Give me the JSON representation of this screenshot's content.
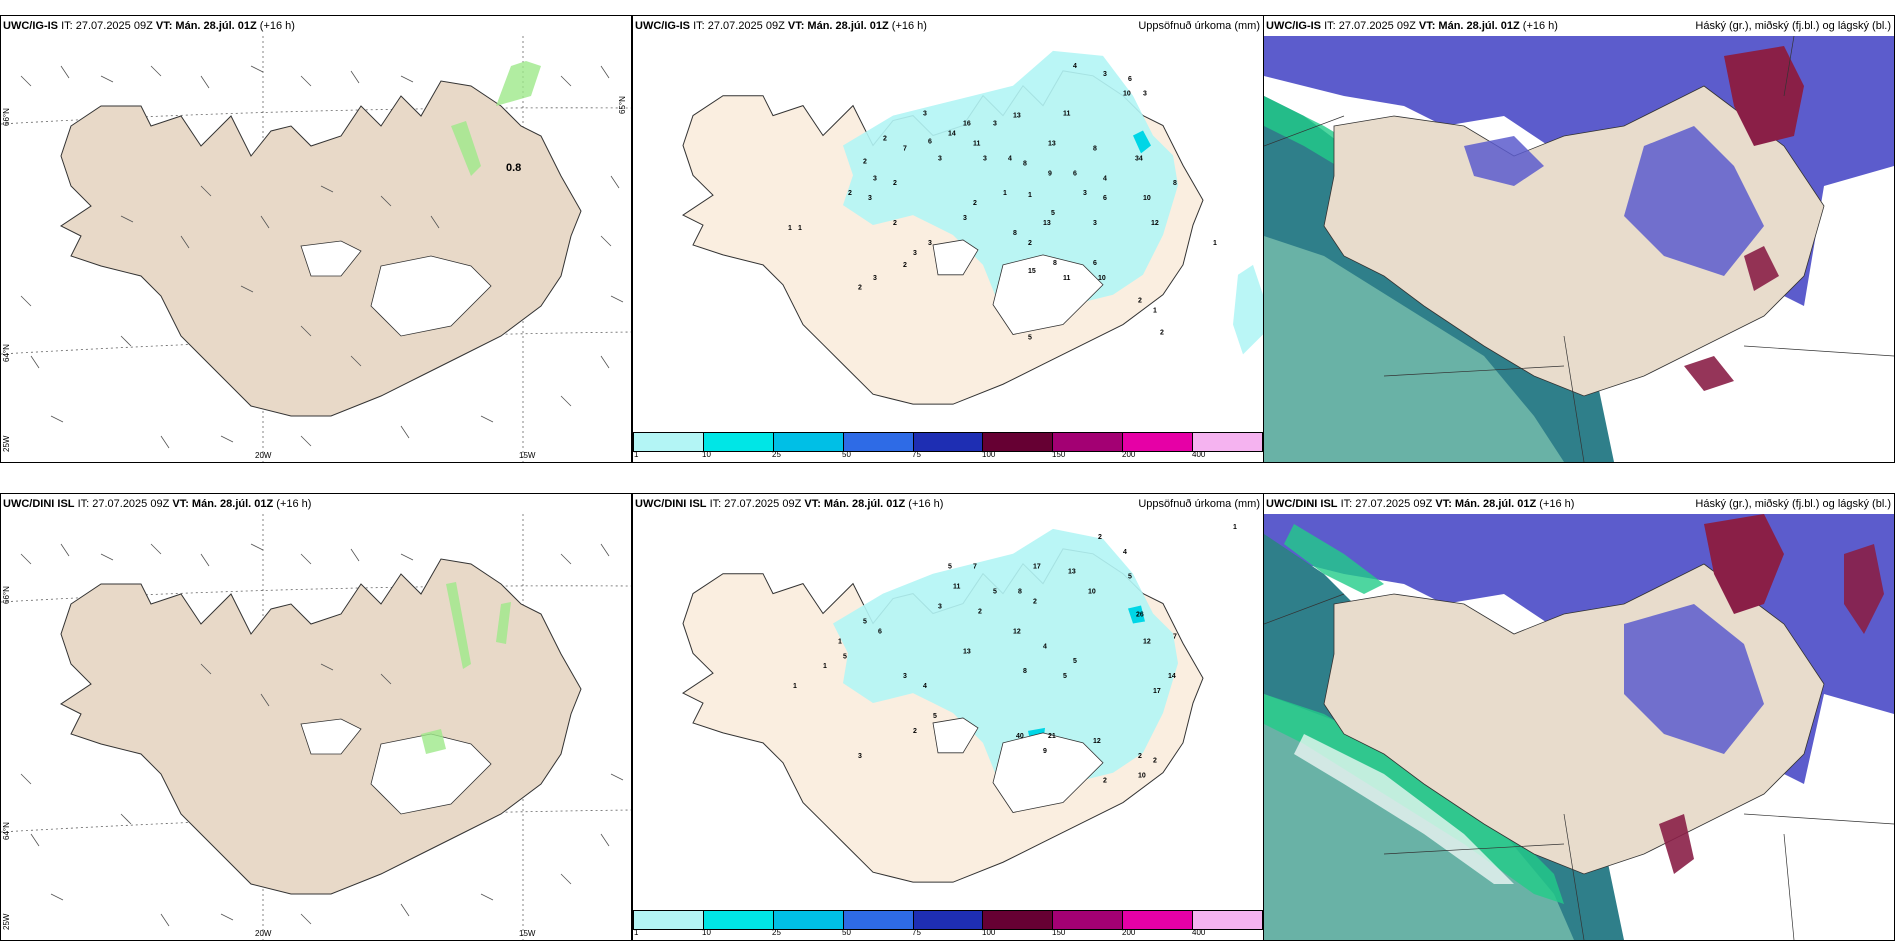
{
  "rows": [
    {
      "model": "UWC/IG-IS",
      "it": "IT: 27.07.2025 09Z",
      "vt_label": "VT:",
      "vt_value": "Mán. 28.júl. 01Z",
      "lead": "(+16 h)"
    },
    {
      "model": "UWC/DINI ISL",
      "it": "IT: 27.07.2025 09Z",
      "vt_label": "VT:",
      "vt_value": "Mán. 28.júl. 01Z",
      "lead": "(+16 h)"
    }
  ],
  "precip_title": "Uppsöfnuð úrkoma (mm)",
  "cloud_title": "Háský (gr.), miðský (fj.bl.) og lágský (bl.)",
  "wind_top_value": "0.8",
  "axis_labels": {
    "lat66": "66°N",
    "lat64": "64°N",
    "lat65": "65°N",
    "lon20": "20W",
    "lon15": "15W",
    "lon25": "25W"
  },
  "colorbar": {
    "ticks": [
      "1",
      "10",
      "25",
      "50",
      "75",
      "100",
      "150",
      "200",
      "400"
    ],
    "colors": [
      "#b3f5f5",
      "#00e6e6",
      "#00bfe6",
      "#2e6be6",
      "#1e2eb3",
      "#660033",
      "#a30073",
      "#e600a6",
      "#f5b3f0"
    ]
  },
  "precip_labels_top": [
    "4",
    "3",
    "6",
    "10",
    "3",
    "11",
    "13",
    "16",
    "3",
    "14",
    "3",
    "2",
    "8",
    "7",
    "6",
    "11",
    "13",
    "34",
    "2",
    "3",
    "4",
    "3",
    "8",
    "9",
    "6",
    "4",
    "8",
    "3",
    "2",
    "1",
    "10",
    "2",
    "3",
    "6",
    "3",
    "2",
    "3",
    "1",
    "12",
    "1",
    "1",
    "3",
    "5",
    "13",
    "2",
    "8",
    "2",
    "3",
    "3",
    "15",
    "8",
    "2",
    "3",
    "2",
    "11",
    "6",
    "10",
    "2",
    "1",
    "1",
    "2",
    "5"
  ],
  "precip_labels_bottom": [
    "2",
    "1",
    "4",
    "5",
    "13",
    "17",
    "10",
    "26",
    "5",
    "11",
    "7",
    "12",
    "5",
    "8",
    "2",
    "6",
    "5",
    "2",
    "12",
    "3",
    "1",
    "4",
    "5",
    "13",
    "17",
    "14",
    "7",
    "8",
    "5",
    "40",
    "21",
    "12",
    "2",
    "10",
    "2",
    "2",
    "9",
    "1",
    "5",
    "3",
    "4",
    "5",
    "2",
    "1",
    "3"
  ]
}
